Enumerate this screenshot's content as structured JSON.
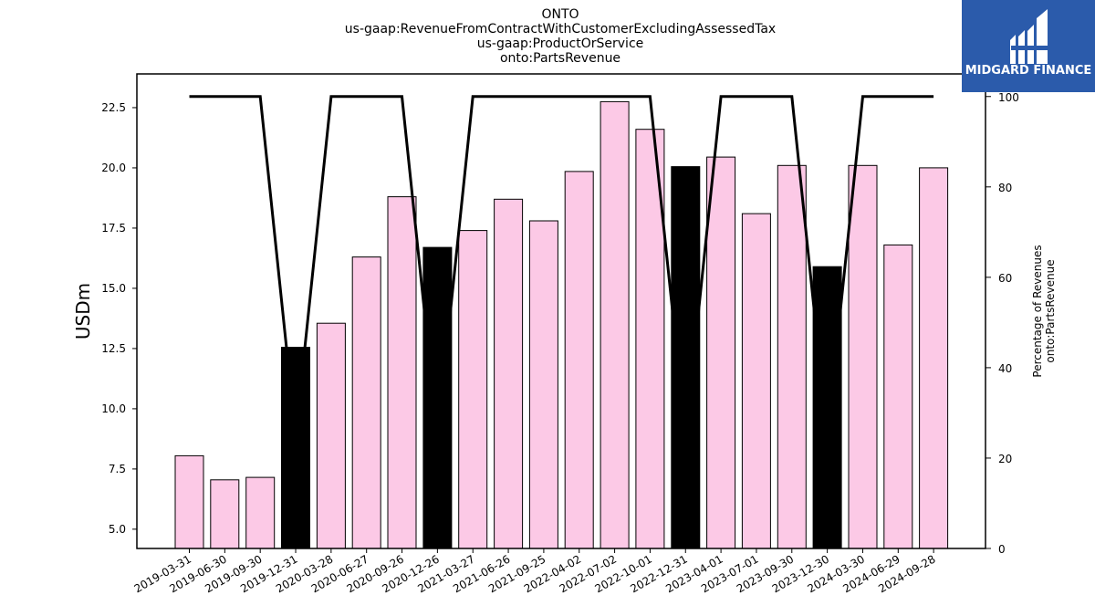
{
  "chart_data": {
    "type": "bar",
    "title_lines": [
      "ONTO",
      "us-gaap:RevenueFromContractWithCustomerExcludingAssessedTax",
      "us-gaap:ProductOrService",
      "onto:PartsRevenue"
    ],
    "ylabel": "USDm",
    "y2label_lines": [
      "Percentage of Revenues",
      "onto:PartsRevenue"
    ],
    "categories": [
      "2019-03-31",
      "2019-06-30",
      "2019-09-30",
      "2019-12-31",
      "2020-03-28",
      "2020-06-27",
      "2020-09-26",
      "2020-12-26",
      "2021-03-27",
      "2021-06-26",
      "2021-09-25",
      "2022-04-02",
      "2022-07-02",
      "2022-10-01",
      "2022-12-31",
      "2023-04-01",
      "2023-07-01",
      "2023-09-30",
      "2023-12-30",
      "2024-03-30",
      "2024-06-29",
      "2024-09-28"
    ],
    "values": [
      8.05,
      7.05,
      7.15,
      12.55,
      13.55,
      16.3,
      18.8,
      16.7,
      17.4,
      18.7,
      17.8,
      19.85,
      22.75,
      21.6,
      20.05,
      20.45,
      18.1,
      20.1,
      15.9,
      20.1,
      16.8,
      20.0
    ],
    "highlight": [
      false,
      false,
      false,
      true,
      false,
      false,
      false,
      true,
      false,
      false,
      false,
      false,
      false,
      false,
      true,
      false,
      false,
      false,
      true,
      false,
      false,
      false
    ],
    "percent": [
      100,
      100,
      100,
      25,
      100,
      100,
      100,
      25,
      100,
      100,
      100,
      100,
      100,
      100,
      25,
      100,
      100,
      100,
      25,
      100,
      100,
      100
    ],
    "ylim": [
      4.2,
      23.9
    ],
    "yticks": [
      5.0,
      7.5,
      10.0,
      12.5,
      15.0,
      17.5,
      20.0,
      22.5
    ],
    "y2lim": [
      0,
      105
    ],
    "y2ticks": [
      0,
      20,
      40,
      60,
      80,
      100
    ],
    "colors": {
      "bar": "#fcc9e6",
      "highlight": "#000000",
      "line": "#000000",
      "edge": "#000000"
    }
  },
  "logo": {
    "text": "MIDGARD FINANCE",
    "bg": "#2b5bab"
  }
}
